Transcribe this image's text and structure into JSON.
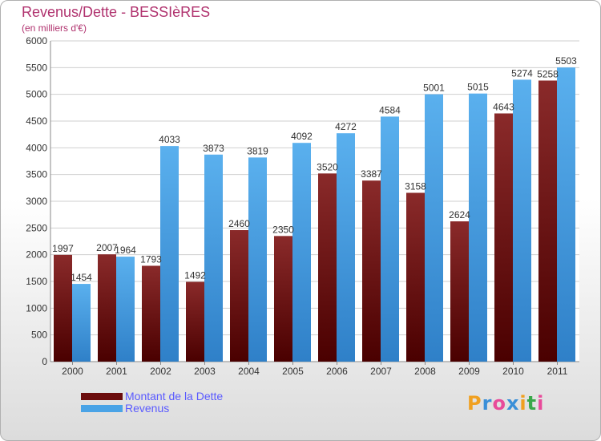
{
  "title": "Revenus/Dette - BESSIèRES",
  "subtitle": "(en milliers d'€)",
  "colors": {
    "debt": "#6b0c0c",
    "revenue": "#4aa3e6",
    "title": "#b0326e",
    "legend_text": "#5a5aff"
  },
  "chart_data": {
    "type": "bar",
    "title": "Revenus/Dette - BESSIèRES",
    "subtitle": "(en milliers d'€)",
    "categories": [
      "2000",
      "2001",
      "2002",
      "2003",
      "2004",
      "2005",
      "2006",
      "2007",
      "2008",
      "2009",
      "2010",
      "2011"
    ],
    "series": [
      {
        "name": "Montant de la Dette",
        "values": [
          1997,
          2007,
          1793,
          1492,
          2460,
          2350,
          3520,
          3387,
          3158,
          2624,
          4643,
          5258
        ]
      },
      {
        "name": "Revenus",
        "values": [
          1454,
          1964,
          4033,
          3873,
          3819,
          4092,
          4272,
          4584,
          5001,
          5015,
          5274,
          5503
        ]
      }
    ],
    "ylim": [
      0,
      6000
    ],
    "yticks": [
      0,
      500,
      1000,
      1500,
      2000,
      2500,
      3000,
      3500,
      4000,
      4500,
      5000,
      5500,
      6000
    ],
    "grid": true,
    "legend": "bottom-left"
  },
  "legend": {
    "debt_label": "Montant de la Dette",
    "revenue_label": "Revenus"
  },
  "logo": {
    "text": "Proxiti"
  }
}
